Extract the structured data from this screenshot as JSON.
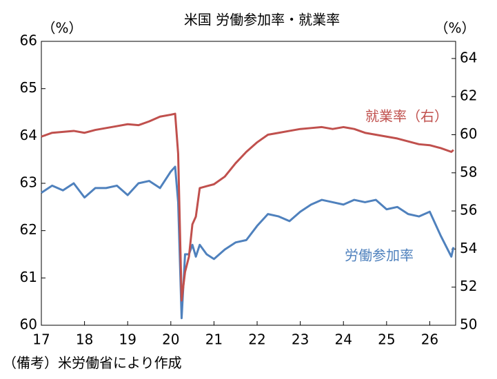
{
  "chart_data": {
    "type": "line",
    "title": "米国 労働参加率・就業率",
    "y_unit": "（%）",
    "y2_unit": "（%）",
    "note": "（備考）米労働省により作成",
    "x": [
      17,
      17.25,
      17.5,
      17.75,
      18,
      18.25,
      18.5,
      18.75,
      19,
      19.25,
      19.5,
      19.75,
      20,
      20.1,
      20.17,
      20.25,
      20.33,
      20.42,
      20.5,
      20.58,
      20.67,
      20.83,
      21,
      21.25,
      21.5,
      21.75,
      22,
      22.25,
      22.5,
      22.75,
      23,
      23.25,
      23.5,
      23.75,
      24,
      24.25,
      24.5,
      24.75,
      25,
      25.25,
      25.5,
      25.75,
      26,
      26.25,
      26.5,
      26.55
    ],
    "series": [
      {
        "name": "労働参加率",
        "color": "#4f81bd",
        "axis": "y",
        "values": [
          62.8,
          62.95,
          62.85,
          63.0,
          62.7,
          62.9,
          62.9,
          62.95,
          62.75,
          63.0,
          63.05,
          62.9,
          63.25,
          63.35,
          62.6,
          60.15,
          61.5,
          61.5,
          61.7,
          61.45,
          61.7,
          61.5,
          61.4,
          61.6,
          61.75,
          61.8,
          62.1,
          62.35,
          62.3,
          62.2,
          62.4,
          62.55,
          62.65,
          62.6,
          62.55,
          62.65,
          62.6,
          62.65,
          62.45,
          62.5,
          62.35,
          62.3,
          62.4,
          61.9,
          61.45,
          61.65
        ]
      },
      {
        "name": "就業率（右）",
        "color": "#c0504d",
        "axis": "y2",
        "values": [
          59.9,
          60.1,
          60.15,
          60.2,
          60.1,
          60.25,
          60.35,
          60.45,
          60.55,
          60.5,
          60.7,
          60.95,
          61.05,
          61.1,
          59.0,
          51.3,
          52.8,
          53.6,
          55.3,
          55.7,
          57.2,
          57.3,
          57.4,
          57.8,
          58.5,
          59.1,
          59.6,
          60.0,
          60.1,
          60.2,
          60.3,
          60.35,
          60.4,
          60.3,
          60.4,
          60.3,
          60.1,
          60.0,
          59.9,
          59.8,
          59.65,
          59.5,
          59.45,
          59.3,
          59.1,
          59.2
        ]
      }
    ],
    "xlim": [
      17,
      26.6
    ],
    "xticks": [
      17,
      18,
      19,
      20,
      21,
      22,
      23,
      24,
      25,
      26
    ],
    "ylim": [
      60,
      66
    ],
    "yticks": [
      60,
      61,
      62,
      63,
      64,
      65,
      66
    ],
    "y2lim": [
      50,
      64.9
    ],
    "y2ticks": [
      50,
      52,
      54,
      56,
      58,
      60,
      62,
      64
    ]
  }
}
